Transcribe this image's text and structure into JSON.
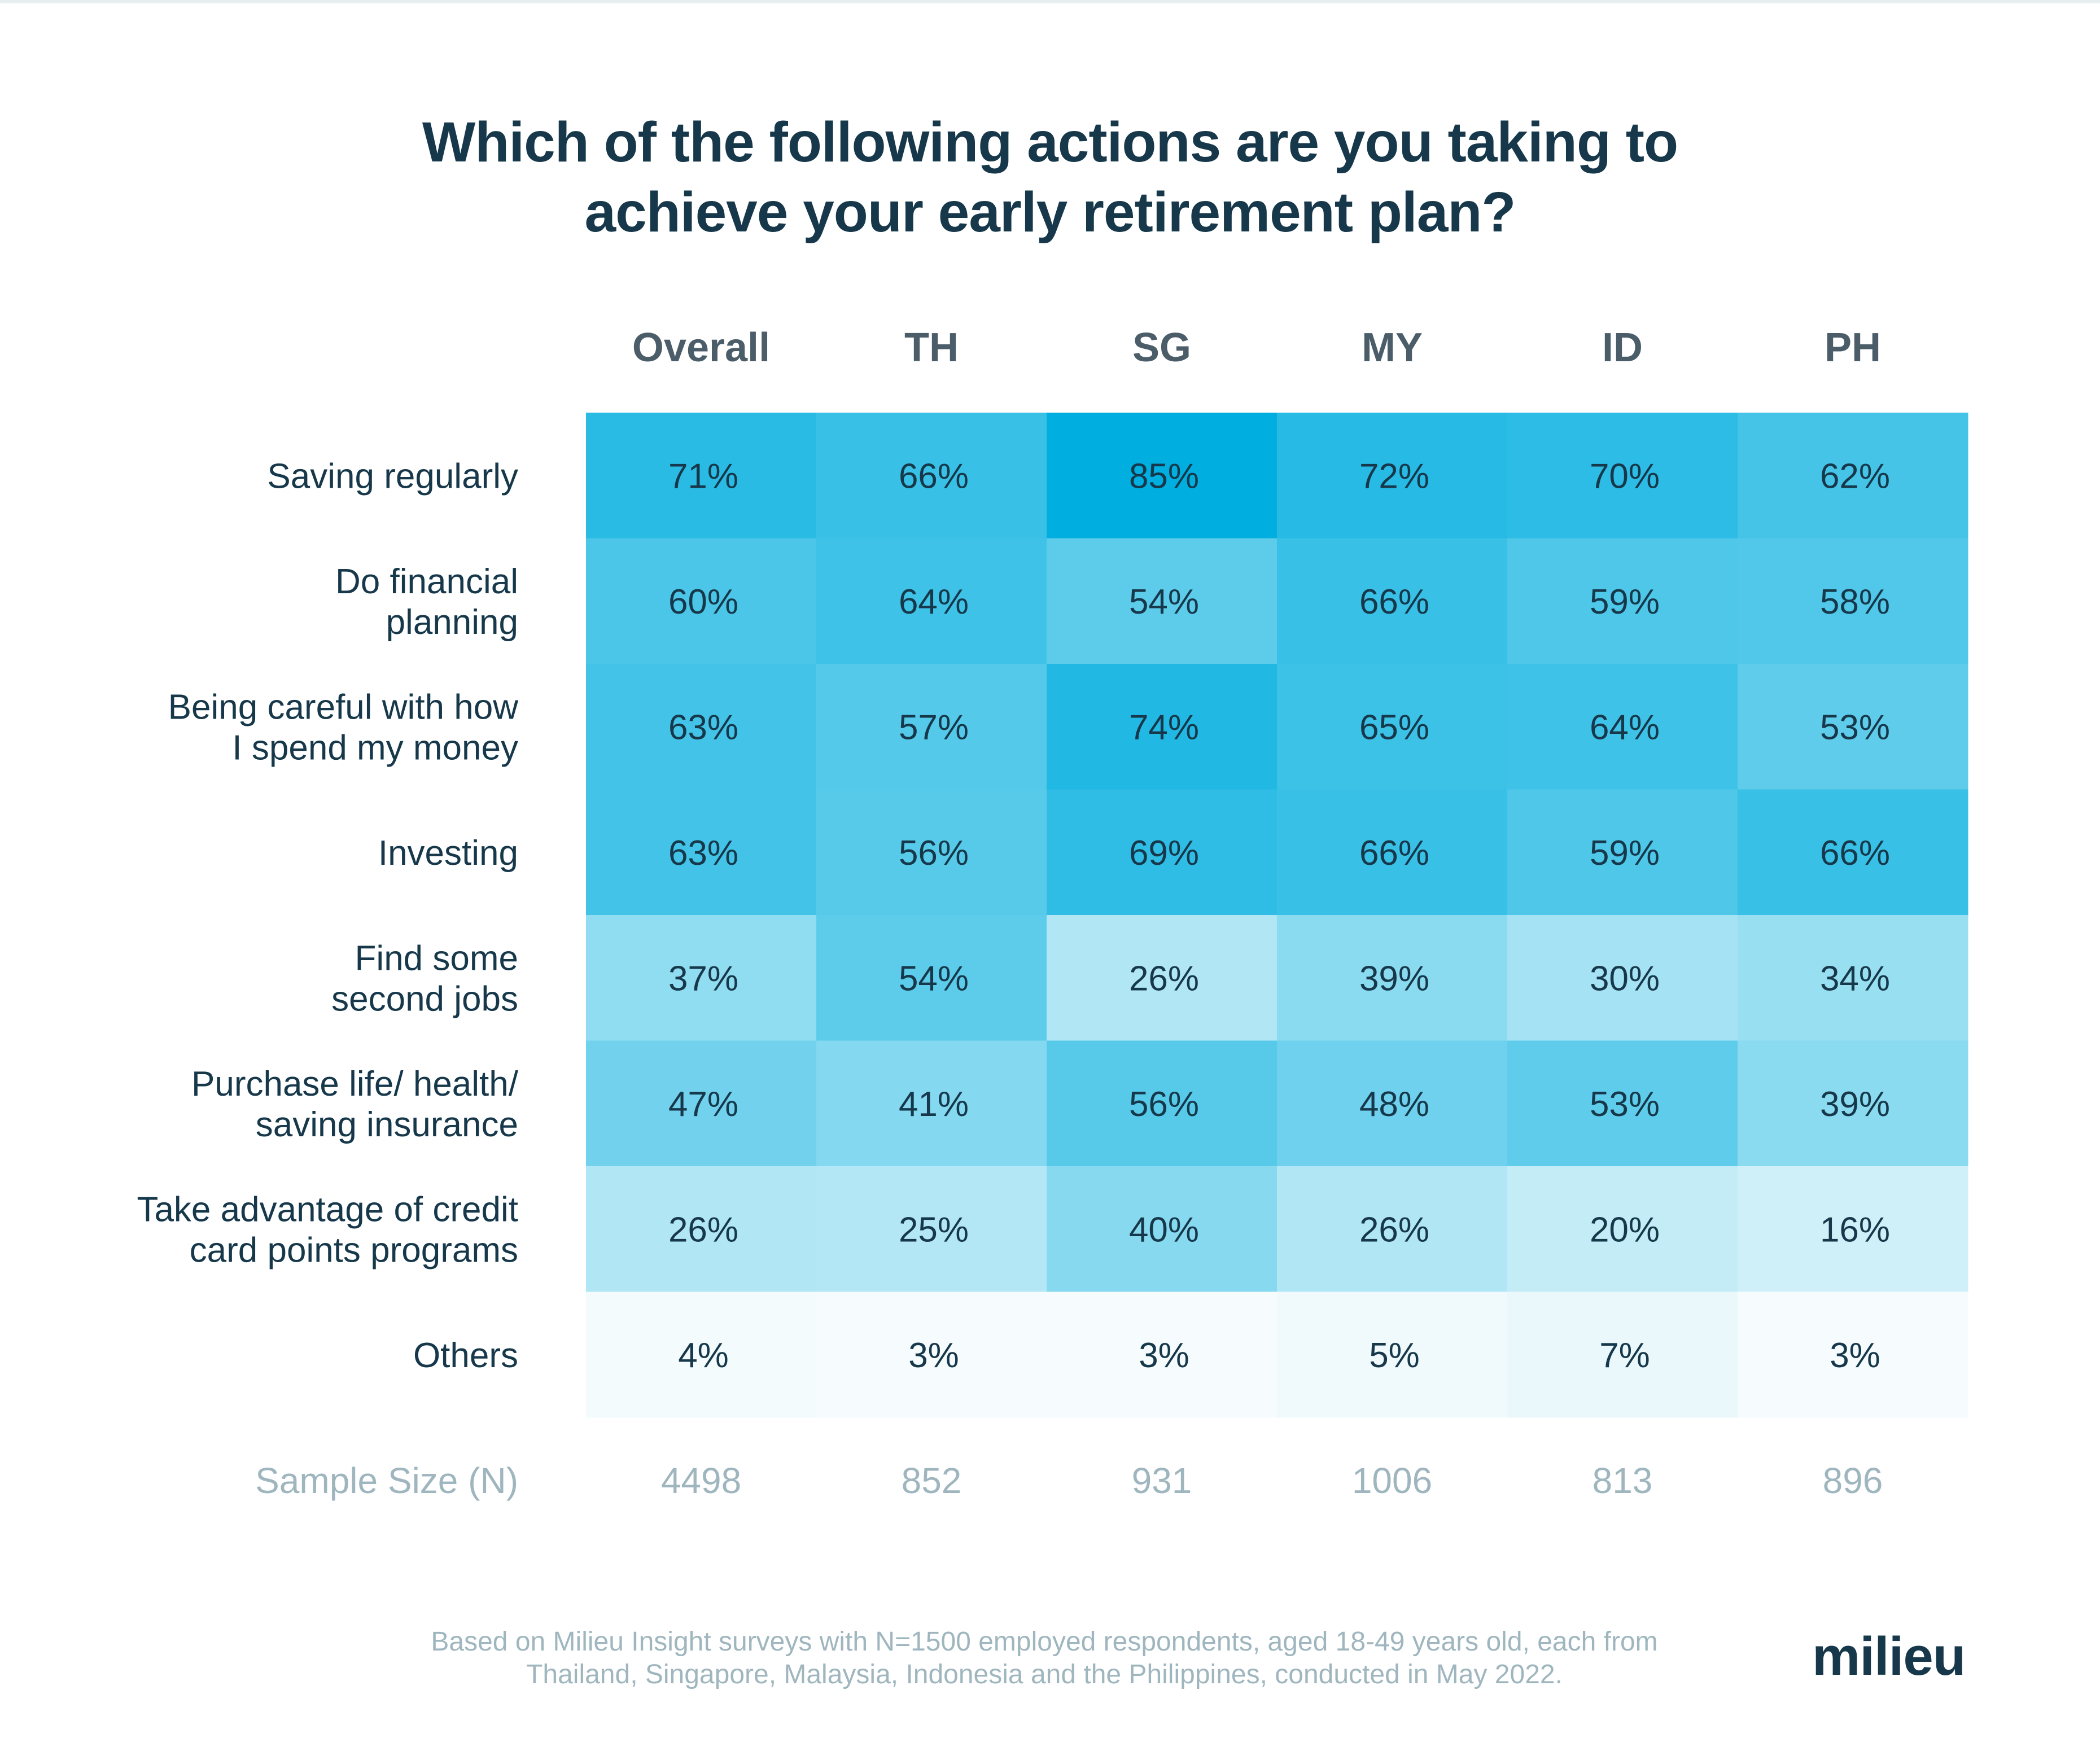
{
  "title_lines": [
    "Which of the following actions are you taking to",
    "achieve your early retirement plan?"
  ],
  "colors": {
    "scale_max": "#00aedf",
    "scale_min": "#ffffff",
    "text": "#16384a",
    "muted": "#9fb6bf"
  },
  "chart_data": {
    "type": "heatmap",
    "columns": [
      "Overall",
      "TH",
      "SG",
      "MY",
      "ID",
      "PH"
    ],
    "rows": [
      {
        "label": [
          "Saving regularly"
        ],
        "values": [
          71,
          66,
          85,
          72,
          70,
          62
        ]
      },
      {
        "label": [
          "Do financial",
          "planning"
        ],
        "values": [
          60,
          64,
          54,
          66,
          59,
          58
        ]
      },
      {
        "label": [
          "Being careful with how",
          "I spend my money"
        ],
        "values": [
          63,
          57,
          74,
          65,
          64,
          53
        ]
      },
      {
        "label": [
          "Investing"
        ],
        "values": [
          63,
          56,
          69,
          66,
          59,
          66
        ]
      },
      {
        "label": [
          "Find some",
          "second jobs"
        ],
        "values": [
          37,
          54,
          26,
          39,
          30,
          34
        ]
      },
      {
        "label": [
          "Purchase life/ health/",
          "saving insurance"
        ],
        "values": [
          47,
          41,
          56,
          48,
          53,
          39
        ]
      },
      {
        "label": [
          "Take advantage of credit",
          "card points programs"
        ],
        "values": [
          26,
          25,
          40,
          26,
          20,
          16
        ]
      },
      {
        "label": [
          "Others"
        ],
        "values": [
          4,
          3,
          3,
          5,
          7,
          3
        ]
      }
    ],
    "value_suffix": "%",
    "sample_size_label": "Sample Size (N)",
    "sample_sizes": [
      4498,
      852,
      931,
      1006,
      813,
      896
    ]
  },
  "footer_lines": [
    "Based on Milieu Insight surveys with N=1500 employed respondents, aged 18-49 years old, each from",
    "Thailand, Singapore, Malaysia, Indonesia and the Philippines, conducted in May 2022."
  ],
  "logo": "milieu"
}
